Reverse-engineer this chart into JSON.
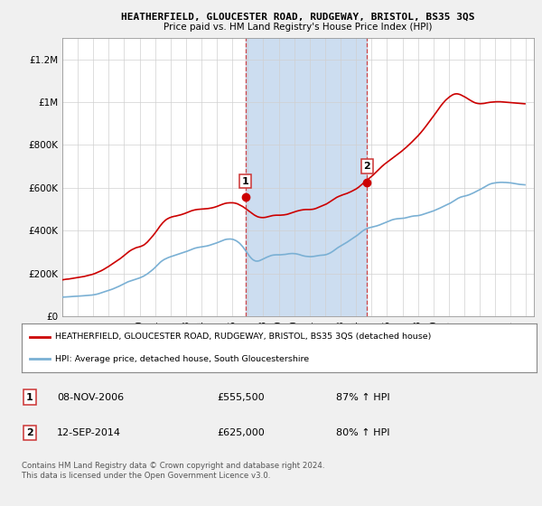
{
  "title": "HEATHERFIELD, GLOUCESTER ROAD, RUDGEWAY, BRISTOL, BS35 3QS",
  "subtitle": "Price paid vs. HM Land Registry's House Price Index (HPI)",
  "legend_line1": "HEATHERFIELD, GLOUCESTER ROAD, RUDGEWAY, BRISTOL, BS35 3QS (detached house)",
  "legend_line2": "HPI: Average price, detached house, South Gloucestershire",
  "footnote": "Contains HM Land Registry data © Crown copyright and database right 2024.\nThis data is licensed under the Open Government Licence v3.0.",
  "table_rows": [
    {
      "num": "1",
      "date": "08-NOV-2006",
      "price": "£555,500",
      "hpi": "87% ↑ HPI"
    },
    {
      "num": "2",
      "date": "12-SEP-2014",
      "price": "£625,000",
      "hpi": "80% ↑ HPI"
    }
  ],
  "sale1_year": 2006.84,
  "sale1_price": 555500,
  "sale2_year": 2014.7,
  "sale2_price": 625000,
  "ylim": [
    0,
    1300000
  ],
  "yticks": [
    0,
    200000,
    400000,
    600000,
    800000,
    1000000,
    1200000
  ],
  "ytick_labels": [
    "£0",
    "£200K",
    "£400K",
    "£600K",
    "£800K",
    "£1M",
    "£1.2M"
  ],
  "background_color": "#f0f0f0",
  "plot_bg_color": "#ffffff",
  "red_color": "#cc0000",
  "blue_color": "#7ab0d4",
  "dashed_color": "#cc3333",
  "shade_color": "#ccddf0",
  "hpi_monthly": [
    90000,
    89500,
    89800,
    90000,
    90500,
    91000,
    91500,
    92000,
    92500,
    92800,
    93000,
    93500,
    94000,
    94200,
    94500,
    95000,
    95500,
    96000,
    96500,
    97000,
    97500,
    98000,
    98500,
    99000,
    100000,
    101000,
    102000,
    103500,
    105000,
    107000,
    109000,
    111000,
    113000,
    115000,
    117000,
    119000,
    121000,
    123000,
    125000,
    127000,
    129500,
    132000,
    134500,
    137000,
    140000,
    143000,
    146000,
    149000,
    152000,
    155000,
    158000,
    161000,
    163000,
    165000,
    167000,
    169000,
    171000,
    173000,
    175000,
    177000,
    179000,
    181500,
    184000,
    187000,
    190500,
    194000,
    198000,
    202500,
    207000,
    212000,
    217000,
    222000,
    228000,
    234000,
    240000,
    246000,
    252000,
    257000,
    261000,
    265000,
    268000,
    271000,
    273500,
    276000,
    278000,
    280000,
    282000,
    284000,
    286000,
    288000,
    290000,
    292000,
    294000,
    296000,
    298000,
    300000,
    302000,
    304000,
    306500,
    309000,
    311500,
    314000,
    316000,
    318000,
    319500,
    321000,
    322000,
    323000,
    324000,
    325000,
    326000,
    327000,
    328000,
    329500,
    331000,
    333000,
    335000,
    337000,
    339000,
    341000,
    343000,
    345500,
    348000,
    350500,
    353000,
    355500,
    357500,
    359000,
    360000,
    360500,
    360800,
    360500,
    359500,
    358000,
    355500,
    352500,
    348500,
    344000,
    338500,
    332000,
    325000,
    317000,
    308500,
    300000,
    291500,
    283000,
    275500,
    269000,
    264000,
    260500,
    258000,
    257500,
    258000,
    259500,
    262000,
    265000,
    268000,
    271000,
    274000,
    276500,
    279000,
    281500,
    283500,
    285000,
    286000,
    286500,
    287000,
    287000,
    287000,
    287000,
    287500,
    288000,
    288500,
    289000,
    290000,
    291000,
    292000,
    292500,
    293000,
    293000,
    292500,
    292000,
    291000,
    289500,
    288000,
    286000,
    284000,
    282500,
    281000,
    280000,
    279500,
    279000,
    278500,
    278500,
    279000,
    279500,
    280500,
    281500,
    282500,
    283500,
    284500,
    285000,
    285500,
    286000,
    287000,
    288500,
    290500,
    293000,
    296000,
    299500,
    303500,
    308000,
    312500,
    317000,
    321000,
    324500,
    328000,
    331500,
    335000,
    338500,
    342000,
    346000,
    350000,
    354000,
    358000,
    362000,
    366000,
    370000,
    374000,
    378500,
    383500,
    388500,
    393500,
    398000,
    402000,
    405500,
    408500,
    411000,
    413000,
    414500,
    416000,
    417500,
    419000,
    420500,
    422000,
    424000,
    426000,
    428500,
    431000,
    433500,
    436000,
    438500,
    441000,
    443500,
    446000,
    448500,
    450500,
    452000,
    453500,
    454500,
    455500,
    456000,
    456500,
    457000,
    457500,
    458000,
    459000,
    460500,
    462000,
    463500,
    465000,
    466500,
    467500,
    468500,
    469000,
    469500,
    470000,
    471000,
    472500,
    474000,
    476000,
    478000,
    480000,
    482000,
    484000,
    486000,
    488000,
    490000,
    492000,
    494500,
    497000,
    499500,
    502000,
    505000,
    508000,
    511000,
    514000,
    517000,
    520000,
    522500,
    525000,
    528000,
    531500,
    535000,
    539000,
    543000,
    547000,
    550500,
    553500,
    556000,
    558000,
    559500,
    561000,
    562500,
    564000,
    566000,
    568000,
    570500,
    573000,
    576000,
    579000,
    582000,
    585000,
    588000,
    591000,
    594500,
    598000,
    601500,
    605000,
    608500,
    612000,
    615000,
    617500,
    619500,
    621000,
    622000,
    623000,
    624000,
    624500,
    625000,
    625500,
    625500,
    625500,
    625000,
    625000,
    624500,
    624000,
    623500,
    623000,
    622000,
    621000,
    620000,
    619000,
    618000,
    617000,
    616000,
    615500,
    615000,
    614500,
    614000
  ],
  "pp_monthly": [
    170000,
    171000,
    172000,
    173000,
    173500,
    174000,
    175000,
    176000,
    177000,
    178000,
    179000,
    180000,
    181000,
    182000,
    183000,
    184000,
    185000,
    186000,
    187500,
    189000,
    190500,
    192000,
    193500,
    195000,
    197000,
    199000,
    201500,
    204000,
    206500,
    209000,
    212000,
    215000,
    218500,
    222000,
    225500,
    229000,
    233000,
    237000,
    241000,
    245000,
    249000,
    253000,
    257000,
    261000,
    265000,
    269500,
    274000,
    279000,
    284000,
    289000,
    294000,
    299000,
    303500,
    307500,
    311000,
    314000,
    317000,
    319500,
    321500,
    323000,
    324500,
    326500,
    329000,
    332000,
    336000,
    341000,
    346500,
    353000,
    360000,
    367000,
    374000,
    381000,
    389000,
    397000,
    405500,
    414000,
    422500,
    430000,
    437000,
    443000,
    448500,
    453000,
    456500,
    459500,
    462000,
    464000,
    465500,
    467000,
    468000,
    469500,
    471000,
    472500,
    474000,
    476000,
    478000,
    480000,
    482500,
    485000,
    487500,
    490000,
    492000,
    494000,
    495500,
    497000,
    498000,
    499000,
    499500,
    500000,
    500500,
    501000,
    501500,
    502000,
    502500,
    503000,
    504000,
    505000,
    506000,
    507500,
    509000,
    511000,
    513000,
    515500,
    518000,
    520500,
    522500,
    524500,
    526500,
    528000,
    529000,
    529500,
    530000,
    530000,
    530000,
    529500,
    528500,
    527000,
    525000,
    522000,
    519000,
    516000,
    512500,
    508500,
    504000,
    499500,
    495000,
    490500,
    486000,
    481500,
    477000,
    473000,
    469500,
    466500,
    464000,
    462500,
    461500,
    461000,
    461000,
    461500,
    462500,
    464000,
    465500,
    467000,
    468500,
    470000,
    471000,
    471500,
    472000,
    472000,
    472000,
    472000,
    472500,
    473000,
    473500,
    474500,
    475500,
    477000,
    479000,
    481000,
    483000,
    485000,
    487000,
    489000,
    491000,
    492500,
    494000,
    495500,
    496500,
    497500,
    498000,
    498500,
    498500,
    498500,
    498500,
    499000,
    499500,
    500500,
    502000,
    504000,
    506500,
    509000,
    511500,
    514000,
    516500,
    519000,
    521500,
    524500,
    528000,
    532000,
    536000,
    540000,
    544000,
    548000,
    552000,
    555500,
    558500,
    561000,
    563500,
    566000,
    568000,
    570000,
    572000,
    574000,
    576500,
    579000,
    582000,
    585000,
    588000,
    591000,
    594500,
    598500,
    603000,
    608000,
    613000,
    618000,
    623000,
    628000,
    633000,
    638000,
    643000,
    648000,
    653000,
    658500,
    664000,
    670000,
    676000,
    682000,
    688000,
    694000,
    699500,
    705000,
    710000,
    714500,
    719000,
    723500,
    728000,
    733000,
    737500,
    742000,
    746500,
    751000,
    755500,
    760000,
    764500,
    769000,
    774000,
    779000,
    784000,
    789500,
    795000,
    800500,
    806000,
    812000,
    818000,
    824000,
    830000,
    836000,
    842500,
    849000,
    856000,
    863000,
    870500,
    878000,
    886000,
    894000,
    902000,
    910000,
    918000,
    926000,
    934000,
    942500,
    951000,
    959500,
    968000,
    976500,
    984500,
    992000,
    999000,
    1006000,
    1012000,
    1017000,
    1022000,
    1027000,
    1031000,
    1034500,
    1037000,
    1038500,
    1039000,
    1038500,
    1037000,
    1035000,
    1032000,
    1029000,
    1026000,
    1022500,
    1019000,
    1015000,
    1011000,
    1007500,
    1004000,
    1001000,
    998000,
    996000,
    994500,
    993500,
    993000,
    993000,
    993500,
    994000,
    995000,
    996500,
    997500,
    998500,
    999500,
    1000000,
    1000500,
    1001000,
    1001500,
    1002000,
    1002000,
    1002000,
    1002000,
    1001500,
    1001000,
    1000500,
    1000000,
    999500,
    999000,
    998500,
    998000,
    997500,
    997000,
    996500,
    996000,
    995500,
    995000,
    994500,
    994000,
    993500,
    993000,
    992500
  ],
  "x_start_year": 1995,
  "x_end_year": 2025,
  "months_per_year": 12
}
